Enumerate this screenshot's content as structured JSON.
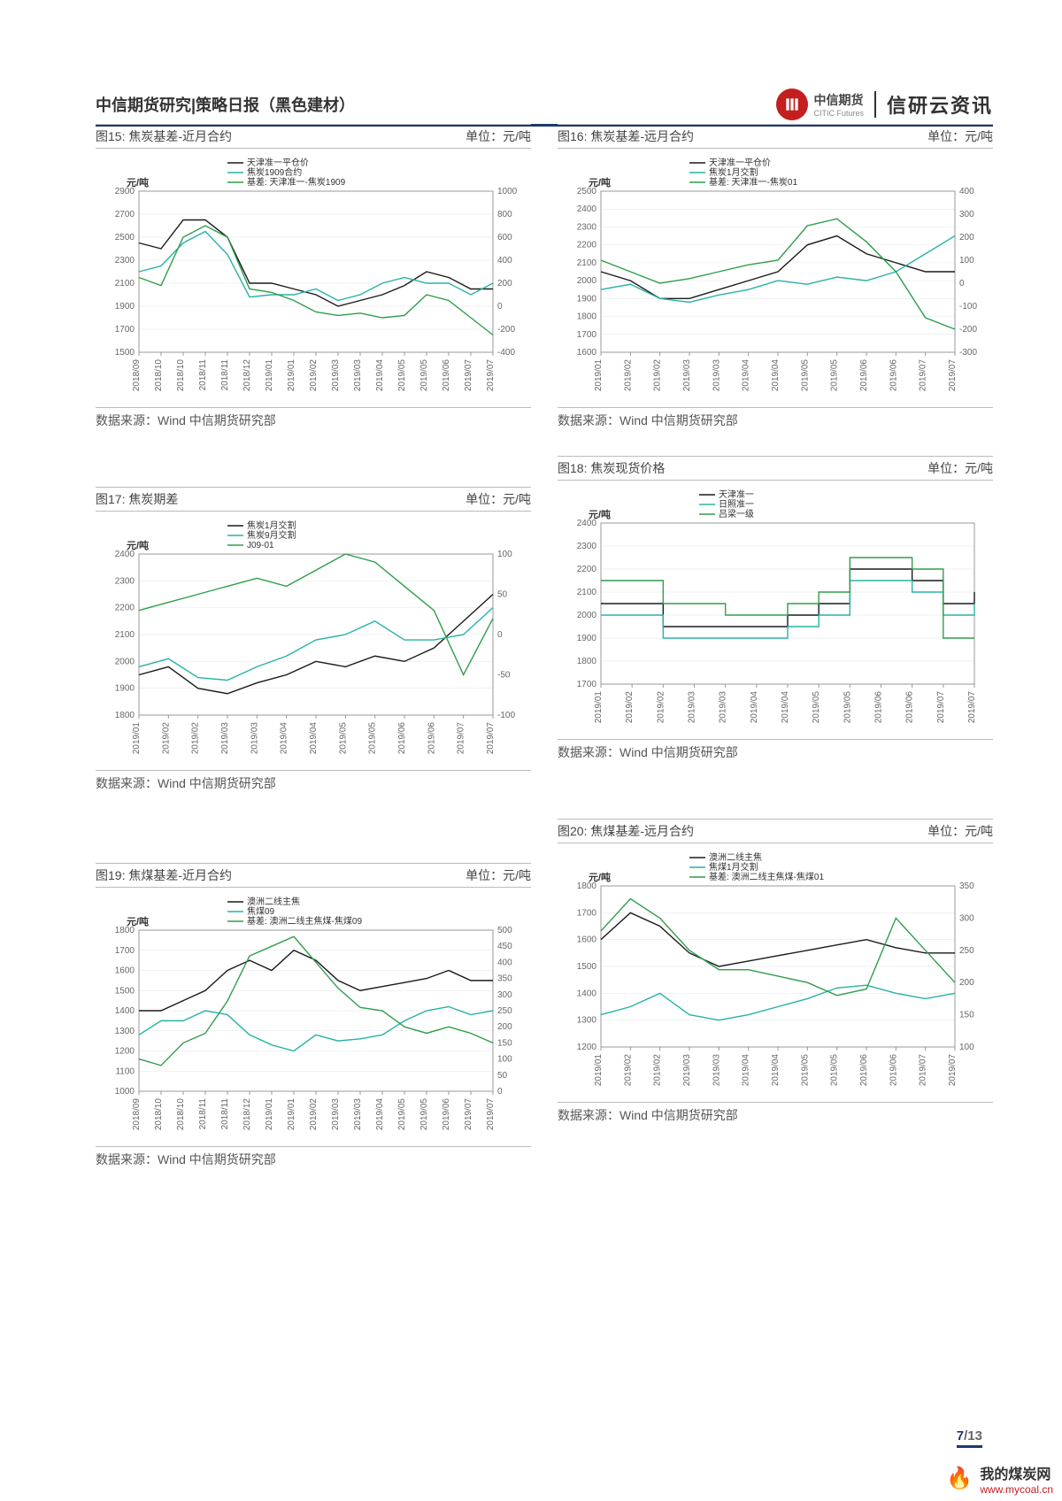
{
  "header": {
    "left": "中信期货研究|策略日报（黑色建材）",
    "brand_cn": "中信期货",
    "brand_en": "CITIC Futures",
    "brand2": "信研云资讯"
  },
  "source": "数据来源：Wind  中信期货研究部",
  "page": {
    "current": "7",
    "total": "/13"
  },
  "watermark": {
    "name": "我的煤炭网",
    "url": "www.mycoal.cn"
  },
  "colors": {
    "black": "#1a1a1a",
    "teal": "#26b3a6",
    "green": "#2e9e4a",
    "axis": "#666666",
    "grid": "#dddddd",
    "title": "#444444"
  },
  "charts": [
    {
      "id": "c15",
      "title": "图15:  焦炭基差-近月合约",
      "unit": "单位：元/吨",
      "ylabel": "元/吨",
      "legend": [
        {
          "c": "#1a1a1a",
          "t": "天津准一平仓价"
        },
        {
          "c": "#26b3a6",
          "t": "焦炭1909合约"
        },
        {
          "c": "#2e9e4a",
          "t": "基差: 天津准一-焦炭1909"
        }
      ],
      "yLeft": {
        "min": 1500,
        "max": 2900,
        "step": 200
      },
      "yRight": {
        "min": -400,
        "max": 1000,
        "step": 200
      },
      "xLabels": [
        "2018/09",
        "2018/10",
        "2018/10",
        "2018/11",
        "2018/11",
        "2018/12",
        "2019/01",
        "2019/01",
        "2019/02",
        "2019/03",
        "2019/03",
        "2019/04",
        "2019/05",
        "2019/05",
        "2019/06",
        "2019/07",
        "2019/07"
      ],
      "series": [
        {
          "c": "#1a1a1a",
          "a": "L",
          "d": [
            2450,
            2400,
            2650,
            2650,
            2500,
            2100,
            2100,
            2050,
            2000,
            1900,
            1950,
            2000,
            2080,
            2200,
            2150,
            2050,
            2050
          ]
        },
        {
          "c": "#26b3a6",
          "a": "L",
          "d": [
            2200,
            2250,
            2450,
            2550,
            2350,
            1980,
            2000,
            2000,
            2050,
            1950,
            2000,
            2100,
            2150,
            2100,
            2100,
            2000,
            2100
          ]
        },
        {
          "c": "#2e9e4a",
          "a": "R",
          "d": [
            250,
            180,
            600,
            700,
            600,
            150,
            120,
            50,
            -50,
            -80,
            -60,
            -100,
            -80,
            100,
            50,
            -100,
            -250
          ]
        }
      ]
    },
    {
      "id": "c16",
      "title": "图16:  焦炭基差-远月合约",
      "unit": "单位：元/吨",
      "ylabel": "元/吨",
      "legend": [
        {
          "c": "#1a1a1a",
          "t": "天津准一平仓价"
        },
        {
          "c": "#26b3a6",
          "t": "焦炭1月交割"
        },
        {
          "c": "#2e9e4a",
          "t": "基差: 天津准一-焦炭01"
        }
      ],
      "yLeft": {
        "min": 1600,
        "max": 2500,
        "step": 100
      },
      "yRight": {
        "min": -300,
        "max": 400,
        "step": 100
      },
      "xLabels": [
        "2019/01",
        "2019/02",
        "2019/02",
        "2019/03",
        "2019/03",
        "2019/04",
        "2019/04",
        "2019/05",
        "2019/05",
        "2019/06",
        "2019/06",
        "2019/07",
        "2019/07"
      ],
      "series": [
        {
          "c": "#1a1a1a",
          "a": "L",
          "d": [
            2050,
            2000,
            1900,
            1900,
            1950,
            2000,
            2050,
            2200,
            2250,
            2150,
            2100,
            2050,
            2050
          ]
        },
        {
          "c": "#26b3a6",
          "a": "L",
          "d": [
            1950,
            1980,
            1900,
            1880,
            1920,
            1950,
            2000,
            1980,
            2020,
            2000,
            2050,
            2150,
            2250
          ]
        },
        {
          "c": "#2e9e4a",
          "a": "R",
          "d": [
            100,
            50,
            0,
            20,
            50,
            80,
            100,
            250,
            280,
            180,
            50,
            -150,
            -200
          ]
        }
      ]
    },
    {
      "id": "c17",
      "title": "图17:  焦炭期差",
      "unit": "单位：元/吨",
      "ylabel": "元/吨",
      "legend": [
        {
          "c": "#1a1a1a",
          "t": "焦炭1月交割"
        },
        {
          "c": "#26b3a6",
          "t": "焦炭9月交割"
        },
        {
          "c": "#2e9e4a",
          "t": "J09-01"
        }
      ],
      "yLeft": {
        "min": 1800,
        "max": 2400,
        "step": 100
      },
      "yRight": {
        "min": -100,
        "max": 100,
        "step": 50
      },
      "xLabels": [
        "2019/01",
        "2019/02",
        "2019/02",
        "2019/03",
        "2019/03",
        "2019/04",
        "2019/04",
        "2019/05",
        "2019/05",
        "2019/06",
        "2019/06",
        "2019/07",
        "2019/07"
      ],
      "series": [
        {
          "c": "#1a1a1a",
          "a": "L",
          "d": [
            1950,
            1980,
            1900,
            1880,
            1920,
            1950,
            2000,
            1980,
            2020,
            2000,
            2050,
            2150,
            2250
          ]
        },
        {
          "c": "#26b3a6",
          "a": "L",
          "d": [
            1980,
            2010,
            1940,
            1930,
            1980,
            2020,
            2080,
            2100,
            2150,
            2080,
            2080,
            2100,
            2200
          ]
        },
        {
          "c": "#2e9e4a",
          "a": "R",
          "d": [
            30,
            40,
            50,
            60,
            70,
            60,
            80,
            100,
            90,
            60,
            30,
            -50,
            20
          ]
        }
      ]
    },
    {
      "id": "c18",
      "title": "图18:  焦炭现货价格",
      "unit": "单位：元/吨",
      "ylabel": "元/吨",
      "legend": [
        {
          "c": "#1a1a1a",
          "t": "天津准一"
        },
        {
          "c": "#26b3a6",
          "t": "日照准一"
        },
        {
          "c": "#2e9e4a",
          "t": "吕梁一级"
        }
      ],
      "yLeft": {
        "min": 1700,
        "max": 2400,
        "step": 100
      },
      "yRight": null,
      "xLabels": [
        "2019/01",
        "2019/02",
        "2019/02",
        "2019/03",
        "2019/03",
        "2019/04",
        "2019/04",
        "2019/05",
        "2019/05",
        "2019/06",
        "2019/06",
        "2019/07",
        "2019/07"
      ],
      "series": [
        {
          "c": "#1a1a1a",
          "a": "L",
          "d": [
            2050,
            2050,
            1950,
            1950,
            1950,
            1950,
            2000,
            2050,
            2200,
            2200,
            2150,
            2050,
            2100
          ],
          "step": true
        },
        {
          "c": "#26b3a6",
          "a": "L",
          "d": [
            2000,
            2000,
            1900,
            1900,
            1900,
            1900,
            1950,
            2000,
            2150,
            2150,
            2100,
            2000,
            2050
          ],
          "step": true
        },
        {
          "c": "#2e9e4a",
          "a": "L",
          "d": [
            2150,
            2150,
            2050,
            2050,
            2000,
            2000,
            2050,
            2100,
            2250,
            2250,
            2200,
            1900,
            1900
          ],
          "step": true
        }
      ]
    },
    {
      "id": "c19",
      "title": "图19:  焦煤基差-近月合约",
      "unit": "单位：元/吨",
      "ylabel": "元/吨",
      "legend": [
        {
          "c": "#1a1a1a",
          "t": "澳洲二线主焦"
        },
        {
          "c": "#26b3a6",
          "t": "焦煤09"
        },
        {
          "c": "#2e9e4a",
          "t": "基差: 澳洲二线主焦煤-焦煤09"
        }
      ],
      "yLeft": {
        "min": 1000,
        "max": 1800,
        "step": 100
      },
      "yRight": {
        "min": 0,
        "max": 500,
        "step": 50
      },
      "xLabels": [
        "2018/09",
        "2018/10",
        "2018/10",
        "2018/11",
        "2018/11",
        "2018/12",
        "2019/01",
        "2019/01",
        "2019/02",
        "2019/03",
        "2019/03",
        "2019/04",
        "2019/05",
        "2019/05",
        "2019/06",
        "2019/07",
        "2019/07"
      ],
      "series": [
        {
          "c": "#1a1a1a",
          "a": "L",
          "d": [
            1400,
            1400,
            1450,
            1500,
            1600,
            1650,
            1600,
            1700,
            1650,
            1550,
            1500,
            1520,
            1540,
            1560,
            1600,
            1550,
            1550
          ]
        },
        {
          "c": "#26b3a6",
          "a": "L",
          "d": [
            1280,
            1350,
            1350,
            1400,
            1380,
            1280,
            1230,
            1200,
            1280,
            1250,
            1260,
            1280,
            1350,
            1400,
            1420,
            1380,
            1400
          ]
        },
        {
          "c": "#2e9e4a",
          "a": "R",
          "d": [
            100,
            80,
            150,
            180,
            280,
            420,
            450,
            480,
            400,
            320,
            260,
            250,
            200,
            180,
            200,
            180,
            150
          ]
        }
      ]
    },
    {
      "id": "c20",
      "title": "图20:  焦煤基差-远月合约",
      "unit": "单位：元/吨",
      "ylabel": "元/吨",
      "legend": [
        {
          "c": "#1a1a1a",
          "t": "澳洲二线主焦"
        },
        {
          "c": "#26b3a6",
          "t": "焦煤1月交割"
        },
        {
          "c": "#2e9e4a",
          "t": "基差: 澳洲二线主焦煤-焦煤01"
        }
      ],
      "yLeft": {
        "min": 1200,
        "max": 1800,
        "step": 100
      },
      "yRight": {
        "min": 100,
        "max": 350,
        "step": 50
      },
      "xLabels": [
        "2019/01",
        "2019/02",
        "2019/02",
        "2019/03",
        "2019/03",
        "2019/04",
        "2019/04",
        "2019/05",
        "2019/05",
        "2019/06",
        "2019/06",
        "2019/07",
        "2019/07"
      ],
      "series": [
        {
          "c": "#1a1a1a",
          "a": "L",
          "d": [
            1600,
            1700,
            1650,
            1550,
            1500,
            1520,
            1540,
            1560,
            1580,
            1600,
            1570,
            1550,
            1550
          ]
        },
        {
          "c": "#26b3a6",
          "a": "L",
          "d": [
            1320,
            1350,
            1400,
            1320,
            1300,
            1320,
            1350,
            1380,
            1420,
            1430,
            1400,
            1380,
            1400
          ]
        },
        {
          "c": "#2e9e4a",
          "a": "R",
          "d": [
            280,
            330,
            300,
            250,
            220,
            220,
            210,
            200,
            180,
            190,
            300,
            250,
            200
          ]
        }
      ]
    }
  ]
}
